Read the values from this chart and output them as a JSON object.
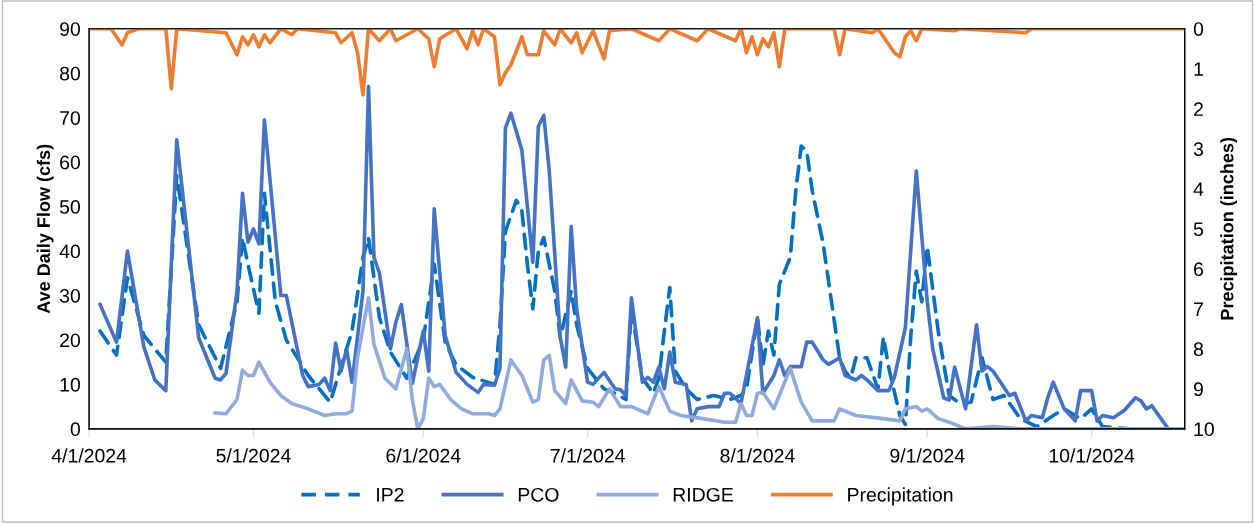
{
  "chart_data": {
    "type": "line",
    "ylabel": "Ave Daily Flow (cfs)",
    "y2label": "Precipitation (inches)",
    "xlim": [
      "2024-04-01",
      "2024-10-18"
    ],
    "xticks": [
      {
        "value": "2024-04-01",
        "label": "4/1/2024"
      },
      {
        "value": "2024-05-01",
        "label": "5/1/2024"
      },
      {
        "value": "2024-06-01",
        "label": "6/1/2024"
      },
      {
        "value": "2024-07-01",
        "label": "7/1/2024"
      },
      {
        "value": "2024-08-01",
        "label": "8/1/2024"
      },
      {
        "value": "2024-09-01",
        "label": "9/1/2024"
      },
      {
        "value": "2024-10-01",
        "label": "10/1/2024"
      }
    ],
    "ylim": [
      0,
      90
    ],
    "yticks": [
      0,
      10,
      20,
      30,
      40,
      50,
      60,
      70,
      80,
      90
    ],
    "y2lim": [
      10,
      0
    ],
    "y2ticks": [
      0,
      1,
      2,
      3,
      4,
      5,
      6,
      7,
      8,
      9,
      10
    ],
    "grid": false,
    "legend": "bottom",
    "marker": "none",
    "series": [
      {
        "name": "IP2",
        "color": "#0070c0",
        "line_style": "dashed",
        "x": [
          "2024-04-03",
          "2024-04-06",
          "2024-04-08",
          "2024-04-11",
          "2024-04-15",
          "2024-04-17",
          "2024-04-21",
          "2024-04-25",
          "2024-04-28",
          "2024-04-29",
          "2024-04-30",
          "2024-05-02",
          "2024-05-03",
          "2024-05-05",
          "2024-05-07",
          "2024-05-11",
          "2024-05-15",
          "2024-05-19",
          "2024-05-21",
          "2024-05-22",
          "2024-05-24",
          "2024-05-26",
          "2024-05-29",
          "2024-06-01",
          "2024-06-03",
          "2024-06-05",
          "2024-06-07",
          "2024-06-10",
          "2024-06-14",
          "2024-06-15",
          "2024-06-16",
          "2024-06-18",
          "2024-06-19",
          "2024-06-20",
          "2024-06-21",
          "2024-06-22",
          "2024-06-23",
          "2024-06-25",
          "2024-06-26",
          "2024-06-28",
          "2024-06-29",
          "2024-07-01",
          "2024-07-04",
          "2024-07-06",
          "2024-07-08",
          "2024-07-09",
          "2024-07-11",
          "2024-07-13",
          "2024-07-14",
          "2024-07-15",
          "2024-07-16",
          "2024-07-17",
          "2024-07-19",
          "2024-07-21",
          "2024-07-24",
          "2024-07-27",
          "2024-07-29",
          "2024-07-30",
          "2024-08-01",
          "2024-08-02",
          "2024-08-03",
          "2024-08-04",
          "2024-08-05",
          "2024-08-07",
          "2024-08-08",
          "2024-08-09",
          "2024-08-10",
          "2024-08-11",
          "2024-08-13",
          "2024-08-15",
          "2024-08-16",
          "2024-08-17",
          "2024-08-18",
          "2024-08-19",
          "2024-08-21",
          "2024-08-23",
          "2024-08-24",
          "2024-08-25",
          "2024-08-27",
          "2024-08-28",
          "2024-08-29",
          "2024-08-30",
          "2024-08-31",
          "2024-09-01",
          "2024-09-03",
          "2024-09-05",
          "2024-09-07",
          "2024-09-09",
          "2024-09-11",
          "2024-09-13",
          "2024-09-15",
          "2024-09-18",
          "2024-09-21",
          "2024-09-24",
          "2024-09-26",
          "2024-09-29",
          "2024-10-01",
          "2024-10-03",
          "2024-10-08",
          "2024-10-13",
          "2024-10-18"
        ],
        "values": [
          22,
          16.6,
          34,
          21,
          15,
          57,
          23.4,
          13.6,
          28.6,
          43,
          37,
          26,
          53,
          28.6,
          20,
          12,
          6,
          22,
          38.6,
          43,
          25,
          17.3,
          11.4,
          20,
          37,
          19.5,
          14.4,
          11.6,
          10,
          23.4,
          44.5,
          51.4,
          49,
          37,
          27,
          40,
          43,
          31,
          20.5,
          31,
          23.4,
          13.6,
          9,
          8,
          6.6,
          27,
          11.4,
          8,
          11.4,
          22,
          31.8,
          13,
          9,
          6.6,
          7.5,
          6.6,
          7.5,
          9,
          25,
          14.3,
          22,
          16.6,
          32.5,
          38.6,
          53.6,
          63.6,
          62.5,
          53.6,
          41.6,
          24.5,
          16,
          13,
          11.4,
          16,
          16,
          9,
          20.7,
          13.6,
          3,
          1,
          21,
          35.5,
          28.6,
          41,
          22,
          7.5,
          5.7,
          6,
          16,
          6.6,
          7.5,
          2.3,
          0.5,
          3,
          4.5,
          2.3,
          4.5,
          0.5,
          0,
          0,
          0
        ]
      },
      {
        "name": "PCO",
        "color": "#4472c4",
        "line_style": "solid",
        "x": [
          "2024-04-03",
          "2024-04-06",
          "2024-04-08",
          "2024-04-11",
          "2024-04-13",
          "2024-04-15",
          "2024-04-17",
          "2024-04-21",
          "2024-04-24",
          "2024-04-25",
          "2024-04-26",
          "2024-04-28",
          "2024-04-29",
          "2024-04-30",
          "2024-05-01",
          "2024-05-02",
          "2024-05-03",
          "2024-05-06",
          "2024-05-07",
          "2024-05-10",
          "2024-05-11",
          "2024-05-13",
          "2024-05-14",
          "2024-05-15",
          "2024-05-16",
          "2024-05-17",
          "2024-05-18",
          "2024-05-19",
          "2024-05-21",
          "2024-05-22",
          "2024-05-23",
          "2024-05-24",
          "2024-05-26",
          "2024-05-27",
          "2024-05-28",
          "2024-05-30",
          "2024-06-01",
          "2024-06-02",
          "2024-06-03",
          "2024-06-05",
          "2024-06-07",
          "2024-06-09",
          "2024-06-11",
          "2024-06-12",
          "2024-06-14",
          "2024-06-15",
          "2024-06-16",
          "2024-06-17",
          "2024-06-19",
          "2024-06-21",
          "2024-06-22",
          "2024-06-23",
          "2024-06-24",
          "2024-06-26",
          "2024-06-27",
          "2024-06-28",
          "2024-06-29",
          "2024-07-01",
          "2024-07-02",
          "2024-07-04",
          "2024-07-06",
          "2024-07-07",
          "2024-07-08",
          "2024-07-09",
          "2024-07-11",
          "2024-07-12",
          "2024-07-13",
          "2024-07-14",
          "2024-07-15",
          "2024-07-16",
          "2024-07-17",
          "2024-07-19",
          "2024-07-20",
          "2024-07-21",
          "2024-07-23",
          "2024-07-25",
          "2024-07-26",
          "2024-07-27",
          "2024-07-29",
          "2024-08-01",
          "2024-08-02",
          "2024-08-04",
          "2024-08-05",
          "2024-08-06",
          "2024-08-07",
          "2024-08-09",
          "2024-08-10",
          "2024-08-11",
          "2024-08-13",
          "2024-08-14",
          "2024-08-16",
          "2024-08-17",
          "2024-08-19",
          "2024-08-20",
          "2024-08-21",
          "2024-08-23",
          "2024-08-25",
          "2024-08-26",
          "2024-08-28",
          "2024-08-30",
          "2024-09-01",
          "2024-09-02",
          "2024-09-04",
          "2024-09-05",
          "2024-09-06",
          "2024-09-08",
          "2024-09-10",
          "2024-09-11",
          "2024-09-12",
          "2024-09-13",
          "2024-09-16",
          "2024-09-17",
          "2024-09-19",
          "2024-09-20",
          "2024-09-22",
          "2024-09-23",
          "2024-09-24",
          "2024-09-26",
          "2024-09-28",
          "2024-09-29",
          "2024-10-01",
          "2024-10-02",
          "2024-10-03",
          "2024-10-05",
          "2024-10-07",
          "2024-10-09",
          "2024-10-10",
          "2024-10-11",
          "2024-10-12",
          "2024-10-15",
          "2024-10-18"
        ],
        "values": [
          28,
          19.5,
          40,
          18.4,
          11,
          8.6,
          65,
          20.5,
          11.4,
          11,
          12.5,
          31,
          53,
          42,
          45,
          41.6,
          69.5,
          30,
          30,
          12,
          9.5,
          10,
          11.4,
          8.6,
          19.3,
          13,
          18,
          10.5,
          31,
          77,
          38.6,
          35,
          18,
          24,
          28,
          10.2,
          22,
          13,
          49.5,
          21,
          12.7,
          10,
          8.2,
          10,
          9.8,
          13.6,
          67.7,
          71,
          62.7,
          37.5,
          68,
          70.5,
          58,
          20.7,
          13.9,
          45.5,
          27,
          10.5,
          10,
          12.7,
          9,
          8.8,
          7.5,
          29.5,
          10.5,
          11.6,
          10.5,
          13.9,
          9,
          17.3,
          10.5,
          10,
          1.8,
          4.5,
          5,
          5,
          8,
          8,
          5.7,
          25,
          8,
          12,
          15.5,
          12,
          14,
          14,
          19.5,
          19.5,
          15.5,
          14.5,
          16,
          12,
          11,
          12,
          11,
          8.6,
          8.6,
          11.6,
          22.7,
          58,
          28.6,
          18,
          7,
          6.5,
          13.9,
          4.5,
          23.4,
          13,
          14,
          13,
          7.5,
          8,
          1.8,
          3,
          2.5,
          7,
          10.5,
          4.5,
          1.8,
          8.6,
          8.6,
          1.8,
          3,
          2.5,
          4.2,
          7,
          6.3,
          4.5,
          5.2,
          0,
          0
        ]
      },
      {
        "name": "RIDGE",
        "color": "#8faadc",
        "line_style": "solid",
        "x": [
          "2024-04-24",
          "2024-04-26",
          "2024-04-28",
          "2024-04-29",
          "2024-04-30",
          "2024-05-01",
          "2024-05-02",
          "2024-05-04",
          "2024-05-06",
          "2024-05-08",
          "2024-05-11",
          "2024-05-14",
          "2024-05-16",
          "2024-05-18",
          "2024-05-19",
          "2024-05-20",
          "2024-05-22",
          "2024-05-23",
          "2024-05-25",
          "2024-05-27",
          "2024-05-29",
          "2024-05-30",
          "2024-05-31",
          "2024-06-01",
          "2024-06-02",
          "2024-06-03",
          "2024-06-04",
          "2024-06-06",
          "2024-06-08",
          "2024-06-10",
          "2024-06-13",
          "2024-06-14",
          "2024-06-15",
          "2024-06-17",
          "2024-06-19",
          "2024-06-21",
          "2024-06-22",
          "2024-06-23",
          "2024-06-24",
          "2024-06-25",
          "2024-06-27",
          "2024-06-28",
          "2024-06-30",
          "2024-07-02",
          "2024-07-03",
          "2024-07-05",
          "2024-07-07",
          "2024-07-09",
          "2024-07-12",
          "2024-07-14",
          "2024-07-16",
          "2024-07-18",
          "2024-07-22",
          "2024-07-26",
          "2024-07-28",
          "2024-07-29",
          "2024-07-30",
          "2024-07-31",
          "2024-08-01",
          "2024-08-02",
          "2024-08-04",
          "2024-08-07",
          "2024-08-09",
          "2024-08-11",
          "2024-08-15",
          "2024-08-16",
          "2024-08-19",
          "2024-08-24",
          "2024-08-27",
          "2024-08-28",
          "2024-08-30",
          "2024-08-31",
          "2024-09-01",
          "2024-09-03",
          "2024-09-05",
          "2024-09-08",
          "2024-09-13",
          "2024-09-18",
          "2024-09-28",
          "2024-10-08",
          "2024-10-18"
        ],
        "values": [
          3.6,
          3.4,
          6.6,
          13.2,
          12,
          12,
          15,
          10.5,
          7.5,
          5.7,
          4.5,
          3,
          3.4,
          3.4,
          4,
          16,
          29.5,
          19,
          11.4,
          9,
          18,
          6.6,
          0,
          2.3,
          11.4,
          9.5,
          10,
          6.6,
          4.5,
          3.4,
          3.4,
          3,
          4.5,
          15.5,
          12,
          6,
          6.6,
          15.5,
          16.5,
          8.6,
          5.7,
          11,
          6.3,
          6,
          5,
          9,
          5,
          5,
          3.4,
          9.5,
          4,
          3,
          2.3,
          1.5,
          1.5,
          5.7,
          3,
          3,
          8,
          8.2,
          4.5,
          13.6,
          6,
          1.8,
          1.8,
          4.5,
          3,
          2.3,
          1.8,
          4.5,
          5,
          4,
          4.5,
          2.3,
          1.5,
          0,
          0.5,
          0,
          0,
          0,
          0
        ]
      },
      {
        "name": "Precipitation",
        "color": "#ed7d31",
        "line_style": "solid",
        "axis": "y2",
        "x": [
          "2024-04-01",
          "2024-04-05",
          "2024-04-07",
          "2024-04-08",
          "2024-04-10",
          "2024-04-15",
          "2024-04-16",
          "2024-04-17",
          "2024-04-26",
          "2024-04-28",
          "2024-04-29",
          "2024-04-30",
          "2024-05-01",
          "2024-05-02",
          "2024-05-03",
          "2024-05-04",
          "2024-05-06",
          "2024-05-08",
          "2024-05-09",
          "2024-05-16",
          "2024-05-17",
          "2024-05-19",
          "2024-05-20",
          "2024-05-21",
          "2024-05-22",
          "2024-05-24",
          "2024-05-26",
          "2024-05-27",
          "2024-05-29",
          "2024-05-31",
          "2024-06-02",
          "2024-06-03",
          "2024-06-04",
          "2024-06-07",
          "2024-06-09",
          "2024-06-10",
          "2024-06-11",
          "2024-06-12",
          "2024-06-14",
          "2024-06-15",
          "2024-06-16",
          "2024-06-17",
          "2024-06-19",
          "2024-06-20",
          "2024-06-22",
          "2024-06-23",
          "2024-06-25",
          "2024-06-26",
          "2024-06-28",
          "2024-06-29",
          "2024-06-30",
          "2024-07-02",
          "2024-07-03",
          "2024-07-04",
          "2024-07-05",
          "2024-07-09",
          "2024-07-14",
          "2024-07-16",
          "2024-07-21",
          "2024-07-23",
          "2024-07-28",
          "2024-07-29",
          "2024-07-30",
          "2024-07-31",
          "2024-08-01",
          "2024-08-02",
          "2024-08-03",
          "2024-08-04",
          "2024-08-05",
          "2024-08-06",
          "2024-08-15",
          "2024-08-16",
          "2024-08-17",
          "2024-08-22",
          "2024-08-23",
          "2024-08-25",
          "2024-08-26",
          "2024-08-27",
          "2024-08-28",
          "2024-08-29",
          "2024-08-30",
          "2024-08-31",
          "2024-09-06",
          "2024-09-07",
          "2024-09-19",
          "2024-09-20",
          "2024-10-18"
        ],
        "values": [
          0,
          0,
          0.4,
          0.1,
          0,
          0,
          1.5,
          0,
          0.1,
          0.65,
          0.2,
          0.4,
          0.15,
          0.45,
          0.15,
          0.35,
          0,
          0.15,
          0,
          0.1,
          0.35,
          0.1,
          0.6,
          1.65,
          0,
          0.3,
          0,
          0.3,
          0.15,
          0,
          0.25,
          0.95,
          0.25,
          0,
          0.5,
          0.05,
          0.4,
          0,
          0.2,
          1.4,
          1.1,
          0.9,
          0.2,
          0.65,
          0.65,
          0.05,
          0.4,
          0,
          0.35,
          0.1,
          0.6,
          0.05,
          0.4,
          0.75,
          0.05,
          0,
          0.3,
          0,
          0.3,
          0,
          0.3,
          0,
          0.6,
          0.2,
          0.65,
          0.25,
          0.45,
          0.1,
          0.95,
          0,
          0,
          0.65,
          0,
          0.1,
          0,
          0.4,
          0.6,
          0.7,
          0.2,
          0.05,
          0.3,
          0,
          0.05,
          0,
          0.1,
          0,
          0
        ]
      }
    ]
  }
}
